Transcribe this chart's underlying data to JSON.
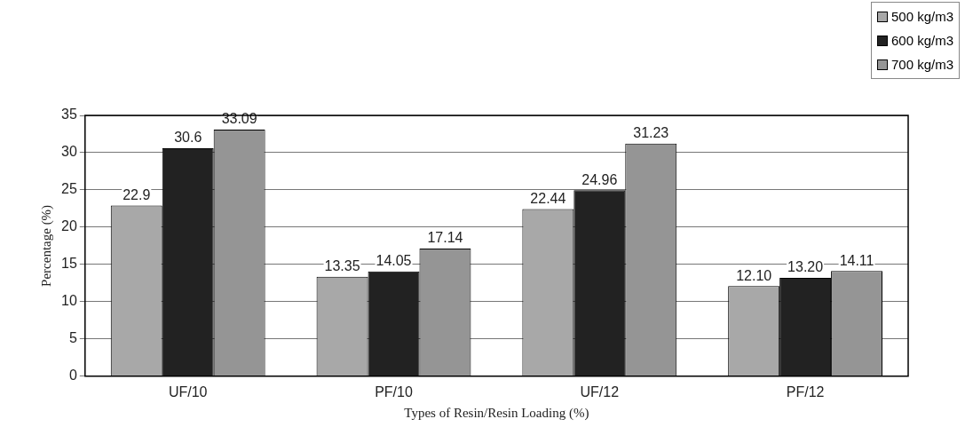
{
  "chart_data": {
    "type": "bar",
    "xlabel": "Types of Resin/Resin Loading (%)",
    "ylabel": "Percentage (%)",
    "categories": [
      "UF/10",
      "PF/10",
      "UF/12",
      "PF/12"
    ],
    "series": [
      {
        "name": "500 kg/m3",
        "color": "#a8a8a8",
        "values": [
          22.9,
          13.35,
          22.44,
          12.1
        ],
        "value_labels": [
          "22.9",
          "13.35",
          "22.44",
          "12.10"
        ]
      },
      {
        "name": "600 kg/m3",
        "color": "#222222",
        "values": [
          30.6,
          14.05,
          24.96,
          13.2
        ],
        "value_labels": [
          "30.6",
          "14.05",
          "24.96",
          "13.20"
        ]
      },
      {
        "name": "700 kg/m3",
        "color": "#959595",
        "values": [
          33.09,
          17.14,
          31.23,
          14.11
        ],
        "value_labels": [
          "33.09",
          "17.14",
          "31.23",
          "14.11"
        ]
      }
    ],
    "ylim": [
      0,
      35
    ],
    "yticks": [
      0,
      5,
      10,
      15,
      20,
      25,
      30,
      35
    ],
    "grid": "y",
    "legend": "top right"
  }
}
